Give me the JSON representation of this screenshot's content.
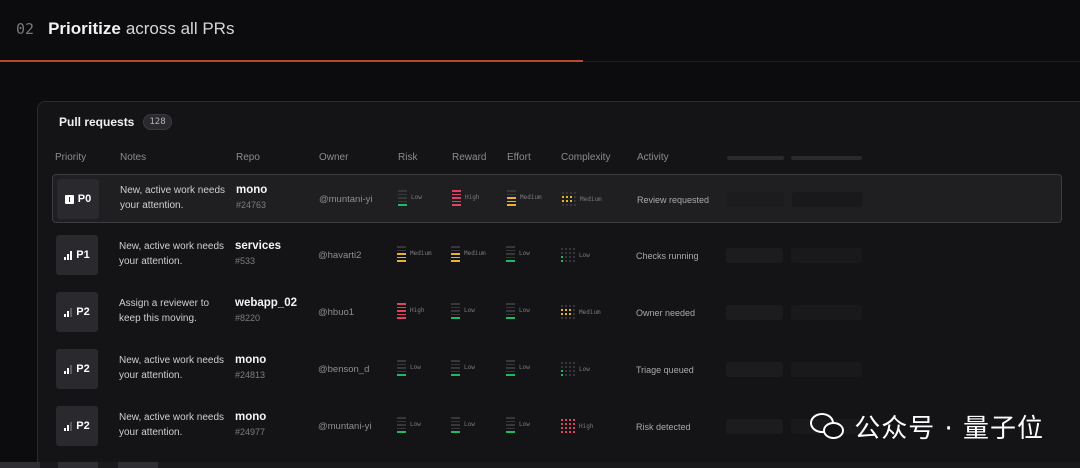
{
  "header": {
    "step_number": "02",
    "title_strong": "Prioritize",
    "title_rest": "across all PRs"
  },
  "progress": {
    "fraction": 0.54,
    "color": "#b8482e"
  },
  "panel": {
    "title": "Pull requests",
    "count": "128"
  },
  "columns": [
    "Priority",
    "Notes",
    "Repo",
    "Owner",
    "Risk",
    "Reward",
    "Effort",
    "Complexity",
    "Activity"
  ],
  "levels": {
    "Low": {
      "color": "#1fb86a"
    },
    "Medium": {
      "color": "#e8b12b"
    },
    "High": {
      "color": "#e0435f"
    }
  },
  "rows": [
    {
      "priority": "P0",
      "icon": "urgent-icon",
      "selected": true,
      "note": "New, active work needs your attention.",
      "repo": "mono",
      "pr": "#24763",
      "owner": "@muntani-yi",
      "risk": "Low",
      "reward": "High",
      "effort": "Medium",
      "complexity": "Medium",
      "activity": "Review requested"
    },
    {
      "priority": "P1",
      "icon": "signal-high-icon",
      "selected": false,
      "note": "New, active work needs your attention.",
      "repo": "services",
      "pr": "#533",
      "owner": "@havarti2",
      "risk": "Medium",
      "reward": "Medium",
      "effort": "Low",
      "complexity": "Low",
      "activity": "Checks running"
    },
    {
      "priority": "P2",
      "icon": "signal-medium-icon",
      "selected": false,
      "note": "Assign a reviewer to keep this moving.",
      "repo": "webapp_02",
      "pr": "#8220",
      "owner": "@hbuo1",
      "risk": "High",
      "reward": "Low",
      "effort": "Low",
      "complexity": "Medium",
      "activity": "Owner needed"
    },
    {
      "priority": "P2",
      "icon": "signal-medium-icon",
      "selected": false,
      "note": "New, active work needs your attention.",
      "repo": "mono",
      "pr": "#24813",
      "owner": "@benson_d",
      "risk": "Low",
      "reward": "Low",
      "effort": "Low",
      "complexity": "Low",
      "activity": "Triage queued"
    },
    {
      "priority": "P2",
      "icon": "signal-medium-icon",
      "selected": false,
      "note": "New, active work needs your attention.",
      "repo": "mono",
      "pr": "#24977",
      "owner": "@muntani-yi",
      "risk": "Low",
      "reward": "Low",
      "effort": "Low",
      "complexity": "High",
      "activity": "Risk detected"
    }
  ],
  "watermark": {
    "text": "公众号 · 量子位",
    "icon": "wechat-icon"
  }
}
